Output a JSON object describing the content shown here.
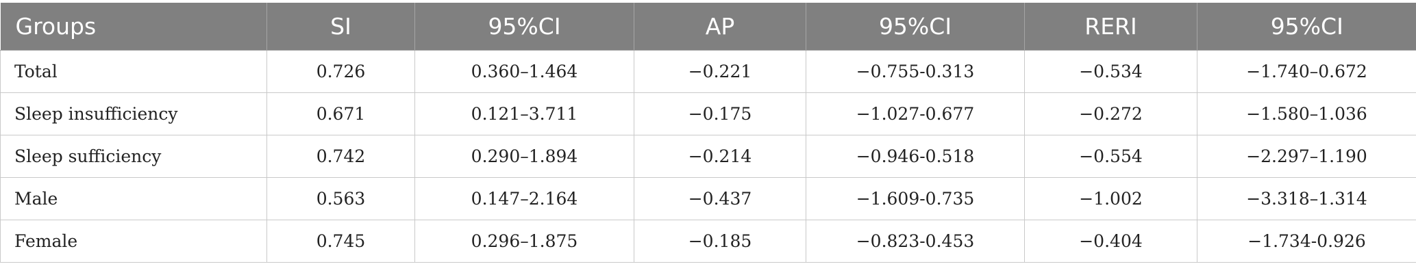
{
  "table": {
    "headers": [
      "Groups",
      "SI",
      "95%CI",
      "AP",
      "95%CI",
      "RERI",
      "95%CI"
    ],
    "rows": [
      [
        "Total",
        "0.726",
        "0.360–1.464",
        "−0.221",
        "−0.755-0.313",
        "−0.534",
        "−1.740–0.672"
      ],
      [
        "Sleep insufficiency",
        "0.671",
        "0.121–3.711",
        "−0.175",
        "−1.027-0.677",
        "−0.272",
        "−1.580–1.036"
      ],
      [
        "Sleep sufficiency",
        "0.742",
        "0.290–1.894",
        "−0.214",
        "−0.946-0.518",
        "−0.554",
        "−2.297–1.190"
      ],
      [
        "Male",
        "0.563",
        "0.147–2.164",
        "−0.437",
        "−1.609-0.735",
        "−1.002",
        "−3.318–1.314"
      ],
      [
        "Female",
        "0.745",
        "0.296–1.875",
        "−0.185",
        "−0.823-0.453",
        "−0.404",
        "−1.734-0.926"
      ]
    ]
  }
}
